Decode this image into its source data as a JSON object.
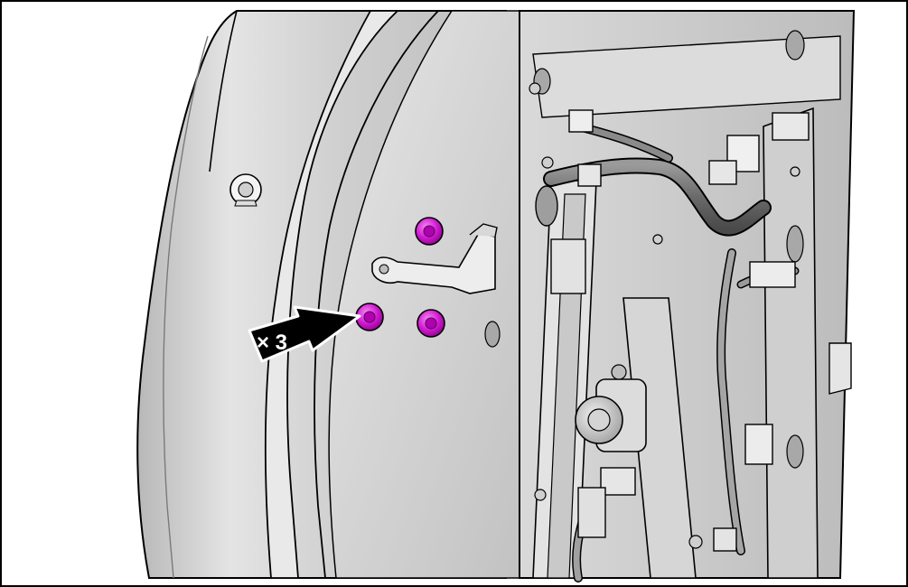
{
  "figure": {
    "callout_label": "× 3",
    "fastener_count": 3,
    "fastener_color": "#cc00cc",
    "fastener_highlight": "#f070f0",
    "panel_color": "#d4d4d4",
    "outline_color": "#000000",
    "arrow_fill": "#000000",
    "arrow_outline": "#ffffff"
  }
}
